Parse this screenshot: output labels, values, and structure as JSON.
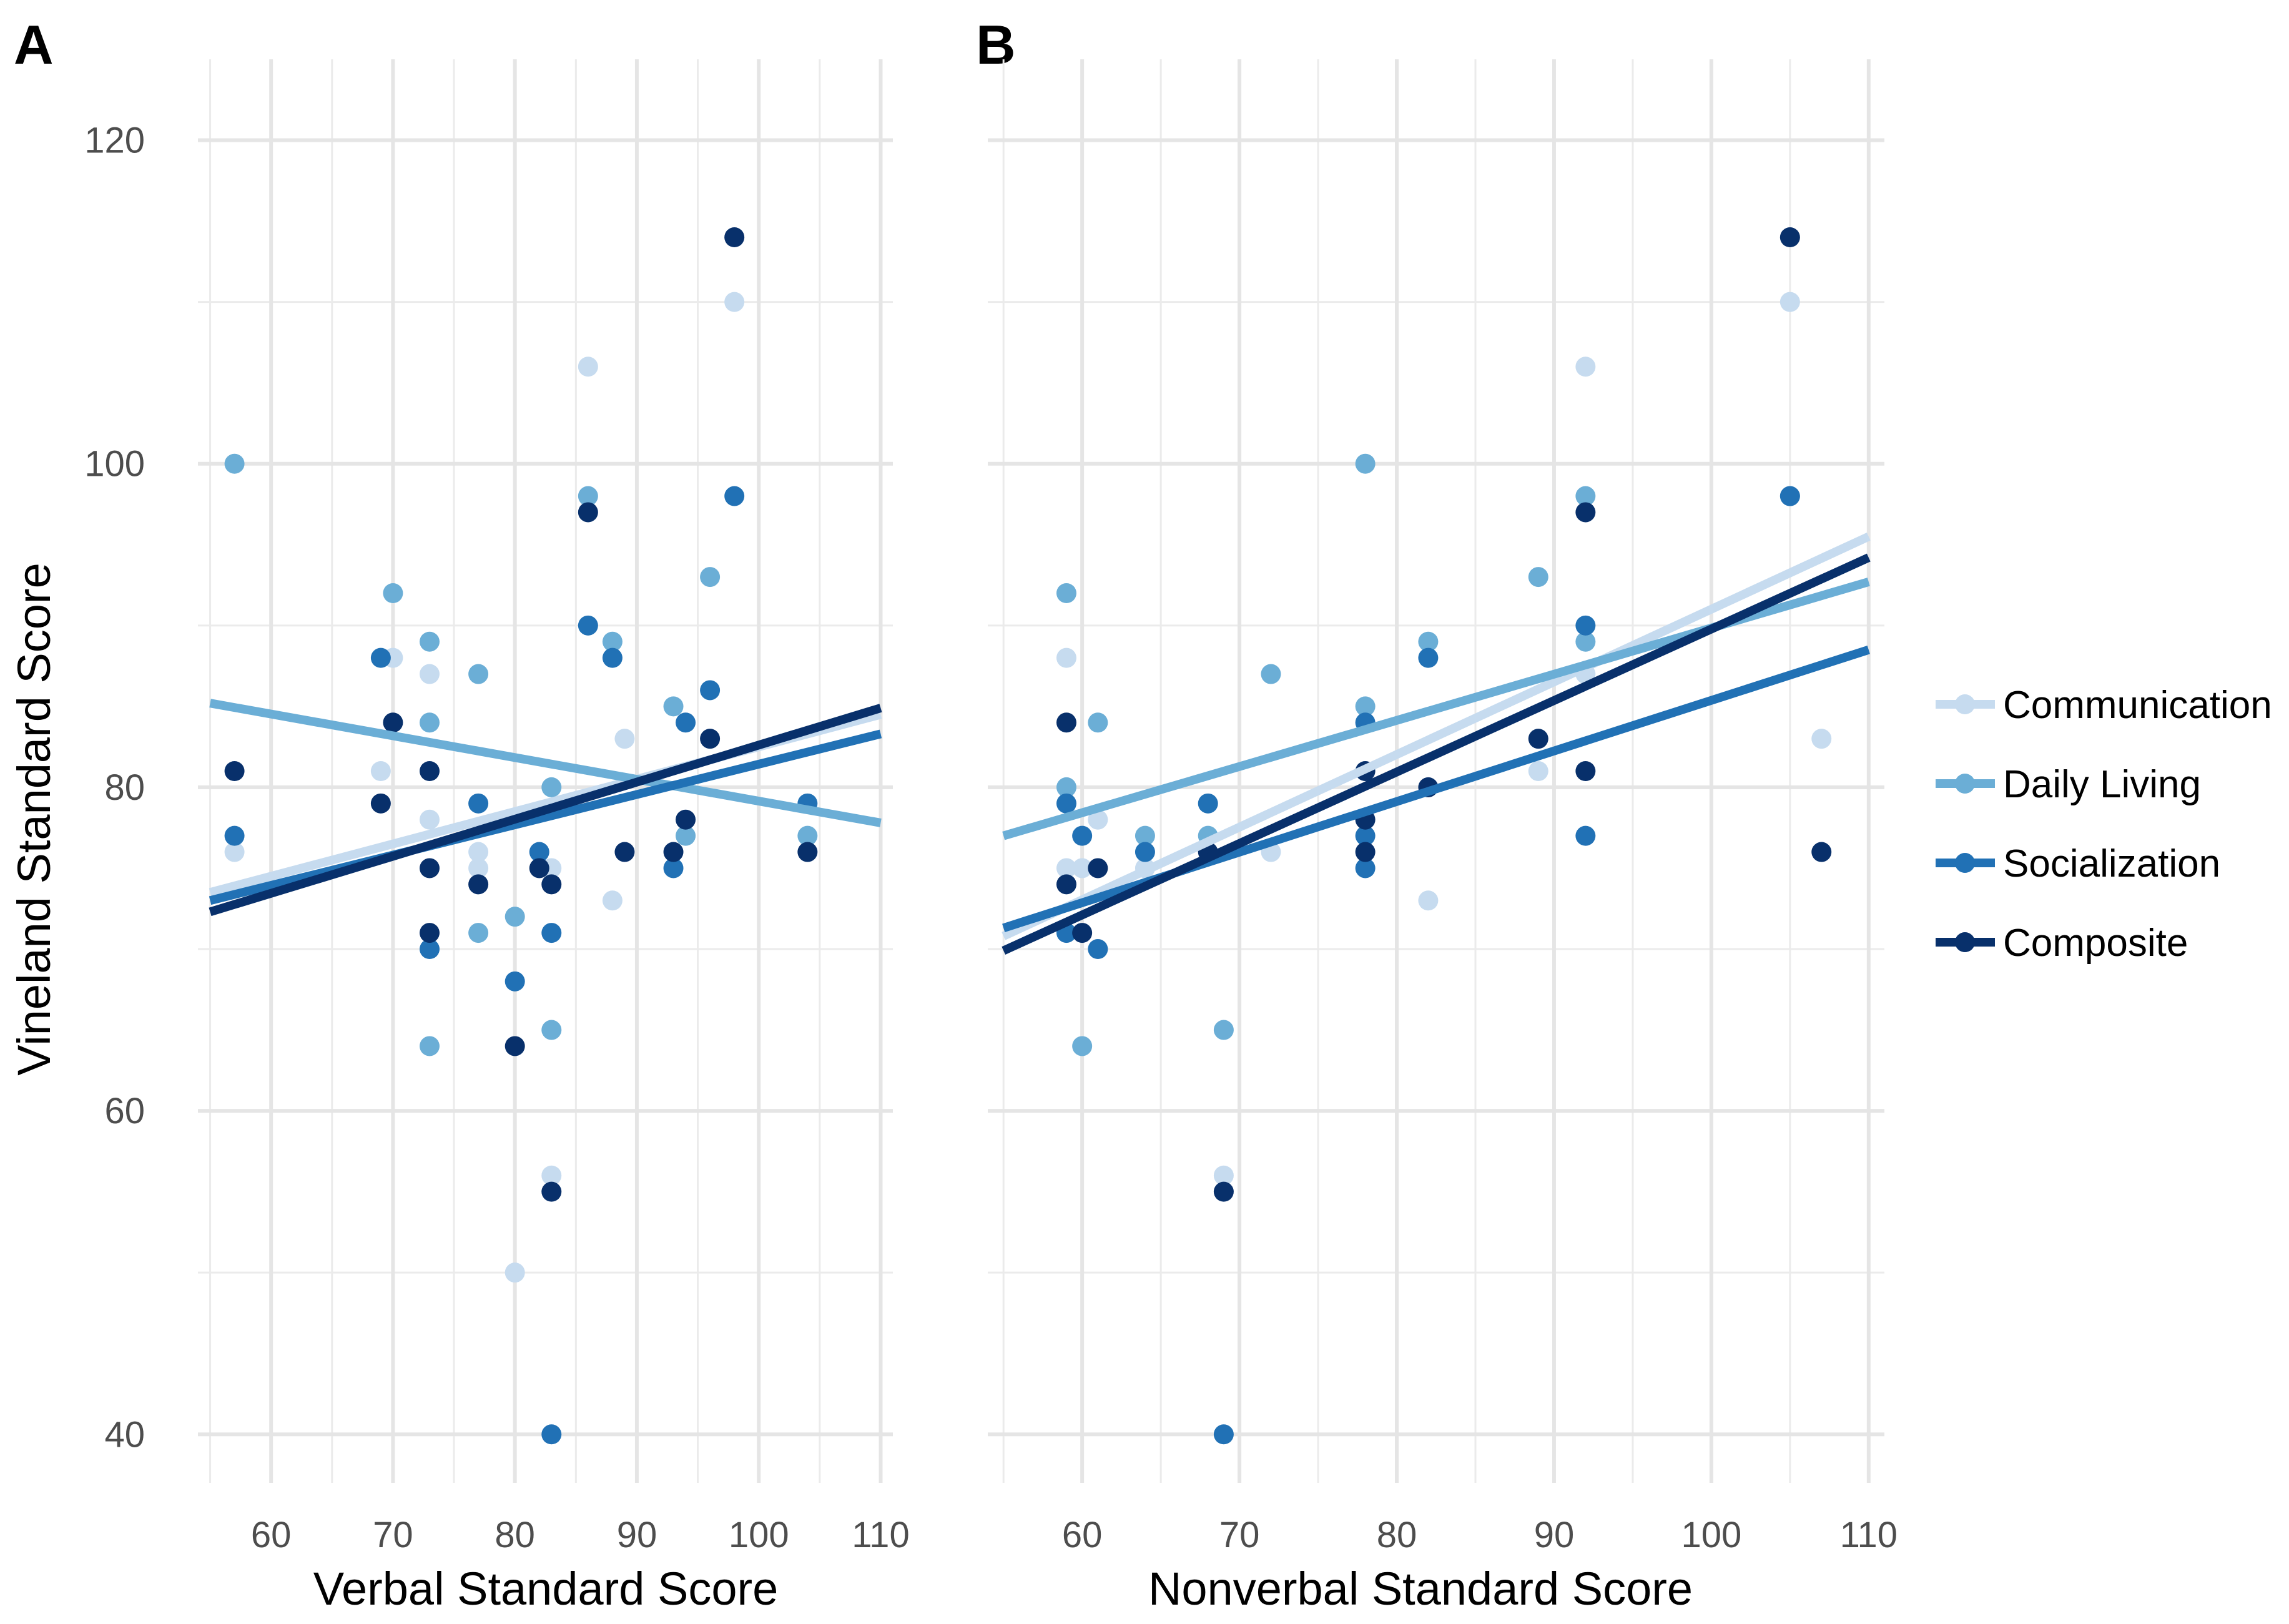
{
  "chart_data": {
    "type": "scatter",
    "series_meta": [
      {
        "key": "communication",
        "name": "Communication",
        "color": "#c6dbef"
      },
      {
        "key": "daily_living",
        "name": "Daily Living",
        "color": "#6baed6"
      },
      {
        "key": "socialization",
        "name": "Socialization",
        "color": "#2171b5"
      },
      {
        "key": "composite",
        "name": "Composite",
        "color": "#08306b"
      }
    ],
    "legend": {
      "position": "right",
      "labels": [
        "Communication",
        "Daily Living",
        "Socialization",
        "Composite"
      ]
    },
    "panels": [
      {
        "tag": "A",
        "xlabel": "Verbal Standard Score",
        "ylabel": "Vineland Standard Score",
        "xlim": [
          54,
          111
        ],
        "ylim": [
          37,
          125
        ],
        "xticks": [
          60,
          70,
          80,
          90,
          100,
          110
        ],
        "yticks": [
          40,
          60,
          80,
          100,
          120
        ],
        "xminor": [
          55,
          65,
          75,
          85,
          95,
          105
        ],
        "yminor": [
          50,
          70,
          90,
          110
        ],
        "fits": {
          "communication": [
            [
              55,
              73.5
            ],
            [
              110,
              84.5
            ]
          ],
          "daily_living": [
            [
              55,
              85.2
            ],
            [
              110,
              77.8
            ]
          ],
          "socialization": [
            [
              55,
              73.0
            ],
            [
              110,
              83.3
            ]
          ],
          "composite": [
            [
              55,
              72.3
            ],
            [
              110,
              84.9
            ]
          ]
        },
        "points": {
          "communication": [
            [
              57,
              76
            ],
            [
              69,
              81
            ],
            [
              70,
              88
            ],
            [
              73,
              87
            ],
            [
              73,
              78
            ],
            [
              77,
              76
            ],
            [
              77,
              75
            ],
            [
              80,
              50
            ],
            [
              83,
              75
            ],
            [
              83,
              56
            ],
            [
              86,
              106
            ],
            [
              88,
              73
            ],
            [
              89,
              83
            ],
            [
              94,
              77
            ],
            [
              98,
              110
            ],
            [
              104,
              76
            ]
          ],
          "daily_living": [
            [
              57,
              100
            ],
            [
              70,
              92
            ],
            [
              73,
              89
            ],
            [
              73,
              84
            ],
            [
              73,
              64
            ],
            [
              77,
              87
            ],
            [
              77,
              71
            ],
            [
              80,
              72
            ],
            [
              83,
              80
            ],
            [
              83,
              65
            ],
            [
              86,
              98
            ],
            [
              88,
              89
            ],
            [
              93,
              85
            ],
            [
              94,
              77
            ],
            [
              96,
              93
            ],
            [
              104,
              77
            ]
          ],
          "socialization": [
            [
              57,
              77
            ],
            [
              69,
              88
            ],
            [
              73,
              70
            ],
            [
              77,
              79
            ],
            [
              80,
              68
            ],
            [
              82,
              76
            ],
            [
              83,
              71
            ],
            [
              83,
              40
            ],
            [
              86,
              90
            ],
            [
              88,
              88
            ],
            [
              93,
              75
            ],
            [
              94,
              84
            ],
            [
              96,
              86
            ],
            [
              98,
              98
            ],
            [
              104,
              79
            ]
          ],
          "composite": [
            [
              57,
              81
            ],
            [
              69,
              79
            ],
            [
              70,
              84
            ],
            [
              73,
              81
            ],
            [
              73,
              75
            ],
            [
              73,
              71
            ],
            [
              77,
              74
            ],
            [
              80,
              64
            ],
            [
              82,
              75
            ],
            [
              83,
              74
            ],
            [
              83,
              55
            ],
            [
              86,
              97
            ],
            [
              89,
              76
            ],
            [
              93,
              76
            ],
            [
              94,
              78
            ],
            [
              96,
              83
            ],
            [
              98,
              114
            ],
            [
              104,
              76
            ]
          ]
        }
      },
      {
        "tag": "B",
        "xlabel": "Nonverbal Standard Score",
        "ylabel": "",
        "xlim": [
          54,
          111
        ],
        "ylim": [
          37,
          125
        ],
        "xticks": [
          60,
          70,
          80,
          90,
          100,
          110
        ],
        "yticks": [
          40,
          60,
          80,
          100,
          120
        ],
        "xminor": [
          55,
          65,
          75,
          85,
          95,
          105
        ],
        "yminor": [
          50,
          70,
          90,
          110
        ],
        "fits": {
          "communication": [
            [
              55,
              70.8
            ],
            [
              110,
              95.5
            ]
          ],
          "daily_living": [
            [
              55,
              77.0
            ],
            [
              110,
              92.7
            ]
          ],
          "socialization": [
            [
              55,
              71.3
            ],
            [
              110,
              88.5
            ]
          ],
          "composite": [
            [
              55,
              69.9
            ],
            [
              110,
              94.2
            ]
          ]
        },
        "points": {
          "communication": [
            [
              59,
              88
            ],
            [
              59,
              75
            ],
            [
              60,
              75
            ],
            [
              61,
              78
            ],
            [
              64,
              75
            ],
            [
              69,
              56
            ],
            [
              72,
              76
            ],
            [
              78,
              81
            ],
            [
              82,
              73
            ],
            [
              89,
              81
            ],
            [
              92,
              106
            ],
            [
              92,
              87
            ],
            [
              105,
              110
            ],
            [
              107,
              83
            ]
          ],
          "daily_living": [
            [
              59,
              92
            ],
            [
              59,
              80
            ],
            [
              60,
              64
            ],
            [
              61,
              84
            ],
            [
              64,
              77
            ],
            [
              68,
              77
            ],
            [
              69,
              65
            ],
            [
              72,
              87
            ],
            [
              78,
              100
            ],
            [
              78,
              85
            ],
            [
              82,
              89
            ],
            [
              89,
              93
            ],
            [
              92,
              98
            ],
            [
              92,
              89
            ],
            [
              105,
              98
            ]
          ],
          "socialization": [
            [
              59,
              79
            ],
            [
              59,
              71
            ],
            [
              60,
              77
            ],
            [
              61,
              70
            ],
            [
              64,
              76
            ],
            [
              68,
              79
            ],
            [
              69,
              40
            ],
            [
              78,
              84
            ],
            [
              78,
              77
            ],
            [
              78,
              75
            ],
            [
              82,
              88
            ],
            [
              92,
              90
            ],
            [
              92,
              77
            ],
            [
              105,
              98
            ]
          ],
          "composite": [
            [
              59,
              84
            ],
            [
              59,
              74
            ],
            [
              60,
              71
            ],
            [
              61,
              75
            ],
            [
              68,
              76
            ],
            [
              69,
              55
            ],
            [
              78,
              81
            ],
            [
              78,
              78
            ],
            [
              78,
              76
            ],
            [
              82,
              80
            ],
            [
              89,
              83
            ],
            [
              92,
              97
            ],
            [
              92,
              81
            ],
            [
              105,
              114
            ],
            [
              107,
              76
            ]
          ]
        }
      }
    ]
  }
}
